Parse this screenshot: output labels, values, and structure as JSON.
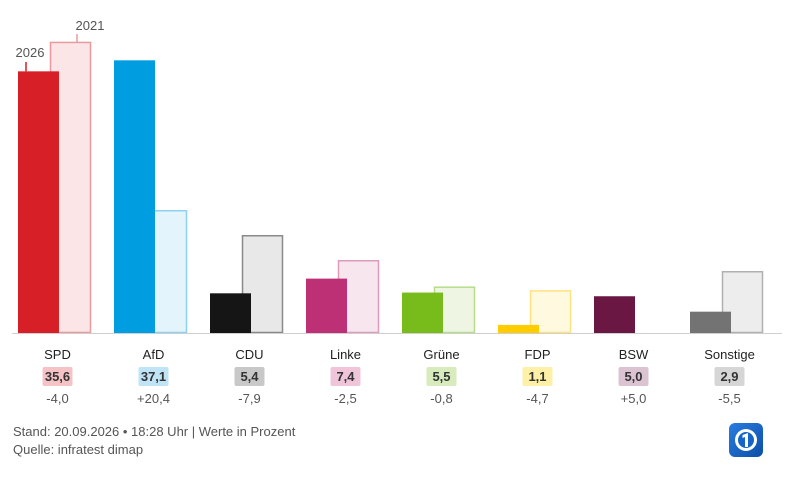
{
  "chart_data": {
    "type": "bar",
    "categories": [
      "SPD",
      "AfD",
      "CDU",
      "Linke",
      "Grüne",
      "FDP",
      "BSW",
      "Sonstige"
    ],
    "series": [
      {
        "name": "2026",
        "values": [
          35.6,
          37.1,
          5.4,
          7.4,
          5.5,
          1.1,
          5.0,
          2.9
        ]
      },
      {
        "name": "2021",
        "values": [
          39.6,
          16.7,
          13.3,
          9.9,
          6.3,
          5.8,
          0.0,
          8.4
        ]
      }
    ],
    "value_labels": [
      "35,6",
      "37,1",
      "5,4",
      "7,4",
      "5,5",
      "1,1",
      "5,0",
      "2,9"
    ],
    "diff_labels": [
      "-4,0",
      "+20,4",
      "-7,9",
      "-2,5",
      "-0,8",
      "-4,7",
      "+5,0",
      "-5,5"
    ],
    "colors": {
      "current": [
        "#d61f26",
        "#009ee0",
        "#151515",
        "#be3075",
        "#78bc1b",
        "#ffcc00",
        "#6b1744",
        "#737373"
      ],
      "previous_fill": [
        "#fbe5e6",
        "#e3f4fc",
        "#e8e8e8",
        "#f8e6ee",
        "#eef6e3",
        "#fff9e0",
        "#f1e5eb",
        "#ededed"
      ],
      "previous_stroke": [
        "#e89a9d",
        "#8dd0ef",
        "#8a8a8a",
        "#dc9bbb",
        "#b7dc8b",
        "#ffe380",
        "#b58ba2",
        "#b0b0b0"
      ],
      "badge": [
        "#f5c3c5",
        "#bfe4f6",
        "#c8c8c8",
        "#f0c5da",
        "#d7ebbd",
        "#fff0a8",
        "#dcc3d1",
        "#d6d6d6"
      ]
    },
    "ylim": [
      0,
      40
    ],
    "xlabel": "",
    "ylabel": ""
  },
  "footer": {
    "stand": "Stand: 20.09.2026 • 18:28 Uhr | Werte in Prozent",
    "quelle": "Quelle: infratest dimap"
  },
  "icons": {
    "logo": "tagesschau-logo"
  }
}
